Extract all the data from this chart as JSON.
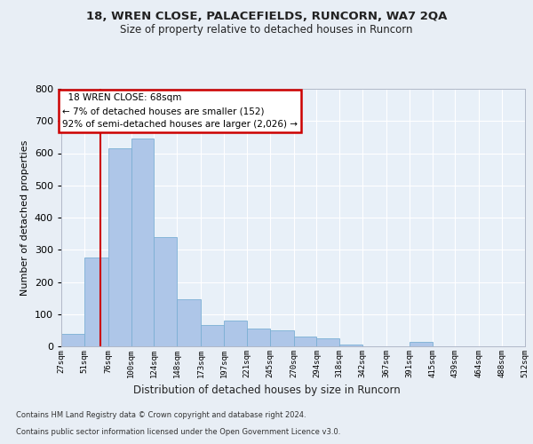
{
  "title1": "18, WREN CLOSE, PALACEFIELDS, RUNCORN, WA7 2QA",
  "title2": "Size of property relative to detached houses in Runcorn",
  "xlabel": "Distribution of detached houses by size in Runcorn",
  "ylabel": "Number of detached properties",
  "property_line_x": 68,
  "annotation_title": "18 WREN CLOSE: 68sqm",
  "annotation_line1": "← 7% of detached houses are smaller (152)",
  "annotation_line2": "92% of semi-detached houses are larger (2,026) →",
  "footer1": "Contains HM Land Registry data © Crown copyright and database right 2024.",
  "footer2": "Contains public sector information licensed under the Open Government Licence v3.0.",
  "bin_edges": [
    27,
    51,
    76,
    100,
    124,
    148,
    173,
    197,
    221,
    245,
    270,
    294,
    318,
    342,
    367,
    391,
    415,
    439,
    464,
    488,
    512
  ],
  "bar_heights": [
    40,
    275,
    615,
    645,
    340,
    145,
    65,
    80,
    55,
    50,
    30,
    25,
    5,
    0,
    0,
    15,
    0,
    0,
    0,
    0
  ],
  "bar_color": "#aec6e8",
  "bar_edge_color": "#7bafd4",
  "vline_color": "#cc0000",
  "annotation_box_color": "#cc0000",
  "bg_color": "#e8eef5",
  "plot_bg_color": "#e8f0f8",
  "ylim": [
    0,
    800
  ],
  "yticks": [
    0,
    100,
    200,
    300,
    400,
    500,
    600,
    700,
    800
  ]
}
